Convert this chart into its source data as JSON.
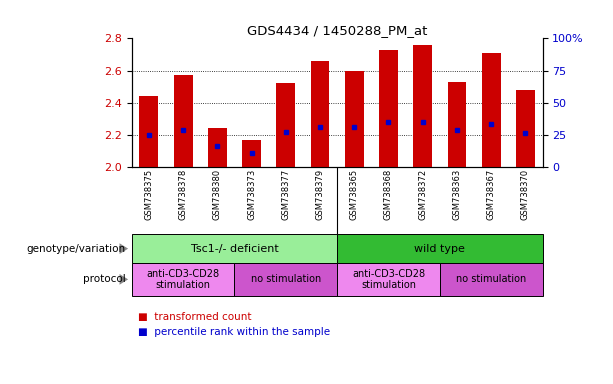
{
  "title": "GDS4434 / 1450288_PM_at",
  "samples": [
    "GSM738375",
    "GSM738378",
    "GSM738380",
    "GSM738373",
    "GSM738377",
    "GSM738379",
    "GSM738365",
    "GSM738368",
    "GSM738372",
    "GSM738363",
    "GSM738367",
    "GSM738370"
  ],
  "bar_values": [
    2.44,
    2.57,
    2.24,
    2.17,
    2.52,
    2.66,
    2.6,
    2.73,
    2.76,
    2.53,
    2.71,
    2.48
  ],
  "percentile_values": [
    2.2,
    2.23,
    2.13,
    2.09,
    2.22,
    2.25,
    2.25,
    2.28,
    2.28,
    2.23,
    2.27,
    2.21
  ],
  "bar_bottom": 2.0,
  "ylim_left": [
    2.0,
    2.8
  ],
  "ylim_right": [
    0,
    100
  ],
  "yticks_left": [
    2.0,
    2.2,
    2.4,
    2.6,
    2.8
  ],
  "yticks_right": [
    0,
    25,
    50,
    75,
    100
  ],
  "ytick_labels_right": [
    "0",
    "25",
    "50",
    "75",
    "100%"
  ],
  "bar_color": "#cc0000",
  "percentile_color": "#0000cc",
  "bar_width": 0.55,
  "groups": [
    {
      "label": "Tsc1-/- deficient",
      "start": 0,
      "end": 6,
      "color": "#99ee99"
    },
    {
      "label": "wild type",
      "start": 6,
      "end": 12,
      "color": "#33bb33"
    }
  ],
  "protocols": [
    {
      "label": "anti-CD3-CD28\nstimulation",
      "start": 0,
      "end": 3,
      "color": "#ee88ee"
    },
    {
      "label": "no stimulation",
      "start": 3,
      "end": 6,
      "color": "#cc55cc"
    },
    {
      "label": "anti-CD3-CD28\nstimulation",
      "start": 6,
      "end": 9,
      "color": "#ee88ee"
    },
    {
      "label": "no stimulation",
      "start": 9,
      "end": 12,
      "color": "#cc55cc"
    }
  ],
  "left_labels": [
    "genotype/variation",
    "protocol"
  ],
  "bg_color": "#ffffff",
  "tick_label_color_left": "#cc0000",
  "tick_label_color_right": "#0000cc",
  "xlabel_area_color": "#cccccc",
  "legend_colors": [
    "#cc0000",
    "#0000cc"
  ],
  "legend_labels": [
    "transformed count",
    "percentile rank within the sample"
  ]
}
